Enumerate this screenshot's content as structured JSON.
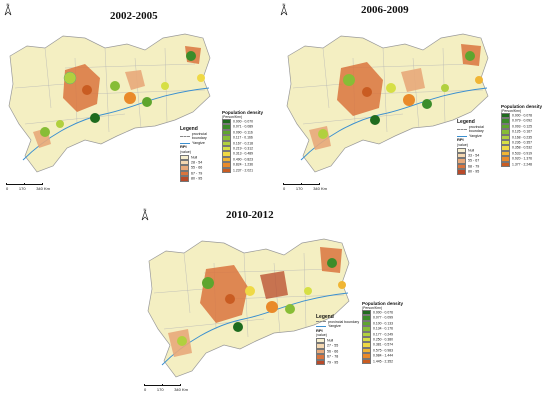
{
  "panels": [
    {
      "title": "2002-2005",
      "north": "N",
      "legend": {
        "title": "Legend",
        "boundary": "provincial boundary",
        "river": "Yangtze",
        "rpi_title": "RPI",
        "rpi_unit": "(value)",
        "rpi_classes": [
          {
            "label": "Null",
            "color": "#f7efcf"
          },
          {
            "label": "28 - 54",
            "color": "#f4d7b0"
          },
          {
            "label": "55 - 66",
            "color": "#e8a97a"
          },
          {
            "label": "67 - 79",
            "color": "#d9743e"
          },
          {
            "label": "80 - 95",
            "color": "#b84a2a"
          }
        ]
      },
      "pd_title": "Population density",
      "pd_unit": "(Person/Km²)",
      "pd_classes": [
        {
          "label": "0.000 - 0.070",
          "color": "#1e6b1e"
        },
        {
          "label": "0.071 - 0.089",
          "color": "#3b8c2a"
        },
        {
          "label": "0.090 - 0.116",
          "color": "#5ea52e"
        },
        {
          "label": "0.117 - 0.166",
          "color": "#87bd36"
        },
        {
          "label": "0.167 - 0.218",
          "color": "#b1d03f"
        },
        {
          "label": "0.219 - 0.312",
          "color": "#d6df45"
        },
        {
          "label": "0.313 - 0.489",
          "color": "#efd945"
        },
        {
          "label": "0.490 - 0.823",
          "color": "#f0b534"
        },
        {
          "label": "0.824 - 1.236",
          "color": "#e98a2a"
        },
        {
          "label": "1.237 - 2.021",
          "color": "#c95c22"
        }
      ],
      "scale": [
        "0",
        "170",
        "340 Km"
      ]
    },
    {
      "title": "2006-2009",
      "north": "N",
      "legend": {
        "title": "Legend",
        "boundary": "provincial boundary",
        "river": "Yangtze",
        "rpi_title": "RPI",
        "rpi_unit": "(value)",
        "rpi_classes": [
          {
            "label": "Null",
            "color": "#f7efcf"
          },
          {
            "label": "33 - 54",
            "color": "#f4d7b0"
          },
          {
            "label": "55 - 67",
            "color": "#e8a97a"
          },
          {
            "label": "68 - 79",
            "color": "#d9743e"
          },
          {
            "label": "80 - 95",
            "color": "#b84a2a"
          }
        ]
      },
      "pd_title": "Population density",
      "pd_unit": "(Person/Km²)",
      "pd_classes": [
        {
          "label": "0.000 - 0.078",
          "color": "#1e6b1e"
        },
        {
          "label": "0.079 - 0.092",
          "color": "#3b8c2a"
        },
        {
          "label": "0.093 - 0.125",
          "color": "#5ea52e"
        },
        {
          "label": "0.126 - 0.167",
          "color": "#87bd36"
        },
        {
          "label": "0.168 - 0.235",
          "color": "#b1d03f"
        },
        {
          "label": "0.236 - 0.357",
          "color": "#d6df45"
        },
        {
          "label": "0.358 - 0.532",
          "color": "#efd945"
        },
        {
          "label": "0.533 - 0.919",
          "color": "#f0b534"
        },
        {
          "label": "0.920 - 1.376",
          "color": "#e98a2a"
        },
        {
          "label": "1.377 - 2.248",
          "color": "#c95c22"
        }
      ],
      "scale": [
        "0",
        "170",
        "340 Km"
      ]
    },
    {
      "title": "2010-2012",
      "north": "N",
      "legend": {
        "title": "Legend",
        "boundary": "provincial boundary",
        "river": "Yangtze",
        "rpi_title": "RPI",
        "rpi_unit": "(value)",
        "rpi_classes": [
          {
            "label": "Null",
            "color": "#f7efcf"
          },
          {
            "label": "27 - 55",
            "color": "#f4d7b0"
          },
          {
            "label": "56 - 66",
            "color": "#e8a97a"
          },
          {
            "label": "67 - 78",
            "color": "#d9743e"
          },
          {
            "label": "79 - 95",
            "color": "#b84a2a"
          }
        ]
      },
      "pd_title": "Population density",
      "pd_unit": "(Person/Km²)",
      "pd_classes": [
        {
          "label": "0.000 - 0.076",
          "color": "#1e6b1e"
        },
        {
          "label": "0.077 - 0.099",
          "color": "#3b8c2a"
        },
        {
          "label": "0.100 - 0.133",
          "color": "#5ea52e"
        },
        {
          "label": "0.134 - 0.176",
          "color": "#87bd36"
        },
        {
          "label": "0.177 - 0.249",
          "color": "#b1d03f"
        },
        {
          "label": "0.250 - 0.380",
          "color": "#d6df45"
        },
        {
          "label": "0.381 - 0.574",
          "color": "#efd945"
        },
        {
          "label": "0.575 - 0.983",
          "color": "#f0b534"
        },
        {
          "label": "0.984 - 1.444",
          "color": "#e98a2a"
        },
        {
          "label": "1.445 - 2.352",
          "color": "#c95c22"
        }
      ],
      "scale": [
        "0",
        "170",
        "340 Km"
      ]
    }
  ],
  "colors": {
    "land": "#f4efc2",
    "boundary": "#9a9a9a",
    "river": "#3a8fd0"
  }
}
